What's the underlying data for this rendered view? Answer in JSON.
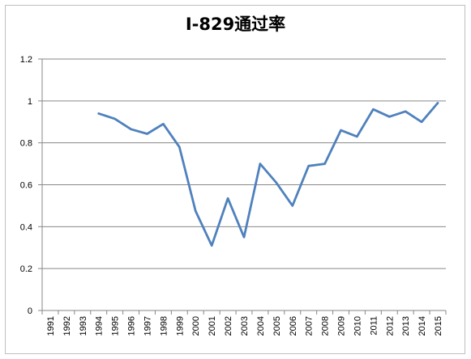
{
  "chart_data": {
    "type": "line",
    "title": "I-829通过率",
    "xlabel": "",
    "ylabel": "",
    "categories": [
      "1991",
      "1992",
      "1993",
      "1994",
      "1995",
      "1996",
      "1997",
      "1998",
      "1999",
      "2000",
      "2001",
      "2002",
      "2003",
      "2004",
      "2005",
      "2006",
      "2007",
      "2008",
      "2009",
      "2010",
      "2011",
      "2012",
      "2013",
      "2014",
      "2015"
    ],
    "series": [
      {
        "values": [
          null,
          null,
          null,
          0.94,
          0.915,
          0.865,
          0.843,
          0.89,
          0.78,
          0.475,
          0.31,
          0.535,
          0.35,
          0.7,
          0.61,
          0.5,
          0.69,
          0.7,
          0.86,
          0.83,
          0.96,
          0.925,
          0.95,
          0.9,
          0.99
        ],
        "color": "#4f81bd"
      }
    ],
    "ylim": [
      0,
      1.2
    ],
    "yticks": [
      0,
      0.2,
      0.4,
      0.6,
      0.8,
      1,
      1.2
    ],
    "ytick_labels": [
      "0",
      "0.2",
      "0.4",
      "0.6",
      "0.8",
      "1",
      "1.2"
    ],
    "grid": true,
    "legend": "none",
    "gridline_color": "#878787",
    "axis_color": "#878787"
  }
}
